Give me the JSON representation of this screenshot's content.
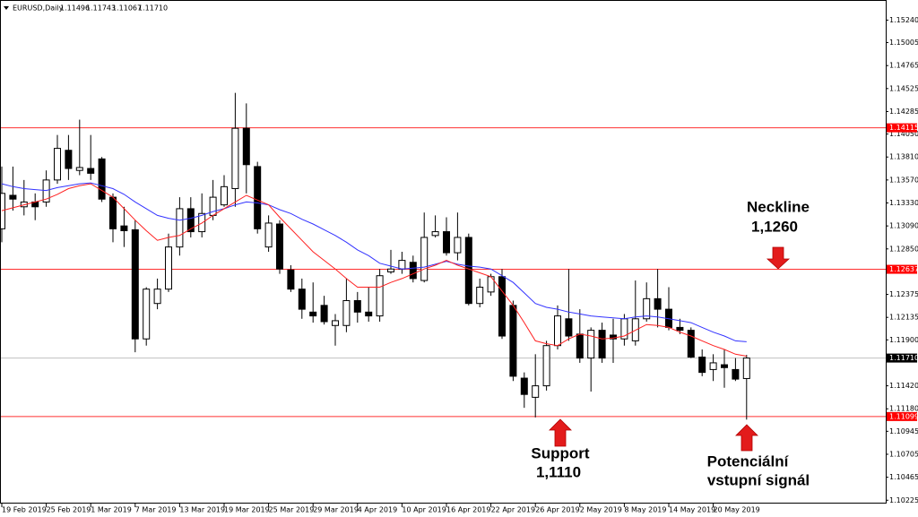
{
  "chart_data": {
    "type": "candlestick",
    "title": "EURUSD,Daily",
    "quote": [
      "1.11496",
      "1.11743",
      "1.11067",
      "1.11710"
    ],
    "categories": [
      "19 Feb 2019",
      null,
      null,
      null,
      "25 Feb 2019",
      null,
      null,
      null,
      "1 Mar 2019",
      null,
      null,
      null,
      "7 Mar 2019",
      null,
      null,
      null,
      "13 Mar 2019",
      null,
      null,
      null,
      "19 Mar 2019",
      null,
      null,
      null,
      "25 Mar 2019",
      null,
      null,
      null,
      "29 Mar 2019",
      null,
      null,
      null,
      "4 Apr 2019",
      null,
      null,
      null,
      "10 Apr 2019",
      null,
      null,
      null,
      "16 Apr 2019",
      null,
      null,
      null,
      "22 Apr 2019",
      null,
      null,
      null,
      "26 Apr 2019",
      null,
      null,
      null,
      "2 May 2019",
      null,
      null,
      null,
      "8 May 2019",
      null,
      null,
      null,
      "14 May 2019",
      null,
      null,
      null,
      "20 May 2019",
      null,
      null,
      null
    ],
    "open": [
      1.1306,
      1.1341,
      1.1329,
      1.1334,
      1.1334,
      1.1357,
      1.1388,
      1.1367,
      1.1369,
      1.1379,
      1.1339,
      1.1309,
      1.1305,
      1.1191,
      1.1228,
      1.1243,
      1.1287,
      1.1327,
      1.1303,
      1.132,
      1.1331,
      1.1348,
      1.1411,
      1.1371,
      1.1287,
      1.1311,
      1.1263,
      1.1243,
      1.1219,
      1.1226,
      1.1205,
      1.1205,
      1.1231,
      1.1219,
      1.1215,
      1.1261,
      1.1264,
      1.1271,
      1.1252,
      1.1299,
      1.1303,
      1.1281,
      1.1297,
      1.1228,
      1.124,
      1.1256,
      1.1226,
      1.115,
      1.113,
      1.1142,
      1.1184,
      1.1212,
      1.1196,
      1.1171,
      1.12,
      1.1195,
      1.1191,
      1.1189,
      1.1212,
      1.1233,
      1.1222,
      1.1203,
      1.12,
      1.1172,
      1.1159,
      1.1164,
      1.1159,
      1.11496
    ],
    "high": [
      1.1371,
      1.1371,
      1.1357,
      1.1343,
      1.1367,
      1.1404,
      1.1404,
      1.142,
      1.1404,
      1.1381,
      1.1343,
      1.1329,
      1.1315,
      1.1245,
      1.1254,
      1.1301,
      1.1339,
      1.1339,
      1.1343,
      1.1357,
      1.1362,
      1.1448,
      1.1437,
      1.1376,
      1.132,
      1.1315,
      1.1268,
      1.1254,
      1.125,
      1.1236,
      1.1217,
      1.1254,
      1.124,
      1.1245,
      1.1264,
      1.1284,
      1.1282,
      1.1278,
      1.1323,
      1.132,
      1.1318,
      1.1323,
      1.1301,
      1.1254,
      1.1259,
      1.1264,
      1.1231,
      1.1156,
      1.1175,
      1.1189,
      1.1226,
      1.1264,
      1.1222,
      1.1203,
      1.1208,
      1.1212,
      1.1217,
      1.1252,
      1.125,
      1.1264,
      1.1245,
      1.1212,
      1.1203,
      1.118,
      1.1175,
      1.118,
      1.1171,
      1.11743
    ],
    "low": [
      1.1292,
      1.1325,
      1.132,
      1.1315,
      1.1329,
      1.1353,
      1.1357,
      1.1362,
      1.1357,
      1.1334,
      1.1292,
      1.1287,
      1.1177,
      1.1184,
      1.1222,
      1.124,
      1.1278,
      1.1297,
      1.1297,
      1.1315,
      1.1329,
      1.1329,
      1.1343,
      1.1301,
      1.1282,
      1.1259,
      1.124,
      1.1212,
      1.1208,
      1.1206,
      1.1184,
      1.1198,
      1.1208,
      1.1209,
      1.1209,
      1.1259,
      1.1259,
      1.125,
      1.125,
      1.1297,
      1.1278,
      1.1273,
      1.1226,
      1.1224,
      1.1236,
      1.1191,
      1.1147,
      1.1119,
      1.1109,
      1.1137,
      1.118,
      1.1189,
      1.1166,
      1.1136,
      1.1166,
      1.1166,
      1.1184,
      1.1184,
      1.1209,
      1.1203,
      1.12,
      1.1196,
      1.1171,
      1.1152,
      1.1147,
      1.114,
      1.1147,
      1.11067
    ],
    "close": [
      1.1343,
      1.1337,
      1.1334,
      1.1329,
      1.1357,
      1.139,
      1.1369,
      1.137,
      1.1364,
      1.1337,
      1.1306,
      1.1304,
      1.1191,
      1.1243,
      1.1243,
      1.1287,
      1.1327,
      1.1303,
      1.1322,
      1.1339,
      1.135,
      1.1411,
      1.1373,
      1.1306,
      1.1312,
      1.1264,
      1.1243,
      1.1222,
      1.1215,
      1.1209,
      1.121,
      1.1231,
      1.1219,
      1.1215,
      1.1257,
      1.1264,
      1.1273,
      1.1254,
      1.1297,
      1.1303,
      1.1281,
      1.1297,
      1.1228,
      1.1245,
      1.1256,
      1.1194,
      1.1152,
      1.1133,
      1.1142,
      1.1184,
      1.1215,
      1.1194,
      1.1171,
      1.12,
      1.1171,
      1.1191,
      1.1212,
      1.1212,
      1.1233,
      1.1222,
      1.1203,
      1.12,
      1.1172,
      1.1156,
      1.1166,
      1.1161,
      1.1149,
      1.1171
    ],
    "up_color": "#ffffff",
    "down_color": "#000000",
    "wick_color": "#000000",
    "overlays": [
      {
        "color": "#3333ff",
        "values": [
          1.1353,
          1.135,
          1.1348,
          1.1347,
          1.1346,
          1.1349,
          1.1351,
          1.1353,
          1.1354,
          1.1351,
          1.1348,
          1.1342,
          1.1334,
          1.1327,
          1.132,
          1.1317,
          1.1315,
          1.1317,
          1.132,
          1.1324,
          1.1327,
          1.1331,
          1.1334,
          1.1333,
          1.1331,
          1.1326,
          1.1322,
          1.1316,
          1.1311,
          1.1305,
          1.1299,
          1.1292,
          1.1284,
          1.1278,
          1.127,
          1.1267,
          1.1264,
          1.1265,
          1.1266,
          1.1269,
          1.1272,
          1.1269,
          1.1267,
          1.1266,
          1.1264,
          1.1257,
          1.125,
          1.1239,
          1.1228,
          1.1224,
          1.1222,
          1.1219,
          1.1217,
          1.1215,
          1.1214,
          1.1213,
          1.1212,
          1.1214,
          1.1215,
          1.1214,
          1.1212,
          1.121,
          1.1208,
          1.1203,
          1.1198,
          1.1194,
          1.1189,
          1.1188
        ]
      },
      {
        "color": "#ff2020",
        "values": [
          1.1325,
          1.1328,
          1.1331,
          1.1334,
          1.1337,
          1.1342,
          1.1348,
          1.1351,
          1.1353,
          1.1346,
          1.1339,
          1.1327,
          1.1315,
          1.1304,
          1.1294,
          1.1297,
          1.1299,
          1.1306,
          1.1312,
          1.132,
          1.1327,
          1.1334,
          1.1341,
          1.1336,
          1.1331,
          1.1318,
          1.1306,
          1.1294,
          1.1282,
          1.1273,
          1.1264,
          1.1254,
          1.1245,
          1.1245,
          1.1245,
          1.125,
          1.1254,
          1.1259,
          1.1264,
          1.1268,
          1.1273,
          1.1268,
          1.1264,
          1.126,
          1.1256,
          1.1241,
          1.1226,
          1.1208,
          1.1189,
          1.1186,
          1.1184,
          1.1191,
          1.1196,
          1.1194,
          1.1191,
          1.1192,
          1.1194,
          1.12,
          1.1206,
          1.1205,
          1.1203,
          1.1198,
          1.1194,
          1.1189,
          1.1184,
          1.118,
          1.1175,
          1.1173
        ]
      }
    ],
    "ylim": [
      1.1019,
      1.1545
    ],
    "yticks": [
      {
        "value": 1.1524,
        "label": "1.15240"
      },
      {
        "value": 1.15005,
        "label": "1.15005"
      },
      {
        "value": 1.14765,
        "label": "1.14765"
      },
      {
        "value": 1.14525,
        "label": "1.14525"
      },
      {
        "value": 1.14285,
        "label": "1.14285"
      },
      {
        "value": 1.1405,
        "label": "1.14050"
      },
      {
        "value": 1.1381,
        "label": "1.13810"
      },
      {
        "value": 1.1357,
        "label": "1.13570"
      },
      {
        "value": 1.1333,
        "label": "1.13330"
      },
      {
        "value": 1.1309,
        "label": "1.13090"
      },
      {
        "value": 1.1285,
        "label": "1.12850"
      },
      {
        "value": 1.12375,
        "label": "1.12375"
      },
      {
        "value": 1.12135,
        "label": "1.12135"
      },
      {
        "value": 1.119,
        "label": "1.11900"
      },
      {
        "value": 1.1142,
        "label": "1.11420"
      },
      {
        "value": 1.1118,
        "label": "1.11180"
      },
      {
        "value": 1.10945,
        "label": "1.10945"
      },
      {
        "value": 1.10705,
        "label": "1.10705"
      },
      {
        "value": 1.10465,
        "label": "1.10465"
      },
      {
        "value": 1.10225,
        "label": "1.10225"
      }
    ],
    "grid": false,
    "levels": [
      {
        "value": 1.14115,
        "label": "1.14115",
        "color": "#ff3030",
        "label_color": "#ff0000"
      },
      {
        "value": 1.12637,
        "label": "1.12637",
        "color": "#ff3030",
        "label_color": "#ff0000"
      },
      {
        "value": 1.1171,
        "label": "1.11710",
        "color": "#c0c0c0",
        "label_color": "#000000"
      },
      {
        "value": 1.11099,
        "label": "1.11099",
        "color": "#ff3030",
        "label_color": "#ff0000"
      }
    ],
    "annotations": [
      {
        "lines": [
          "Neckline",
          "1,1260"
        ]
      },
      {
        "lines": [
          "Support",
          "1,1110"
        ]
      },
      {
        "lines": [
          "Potenciální",
          "vstupní signál"
        ]
      }
    ]
  }
}
